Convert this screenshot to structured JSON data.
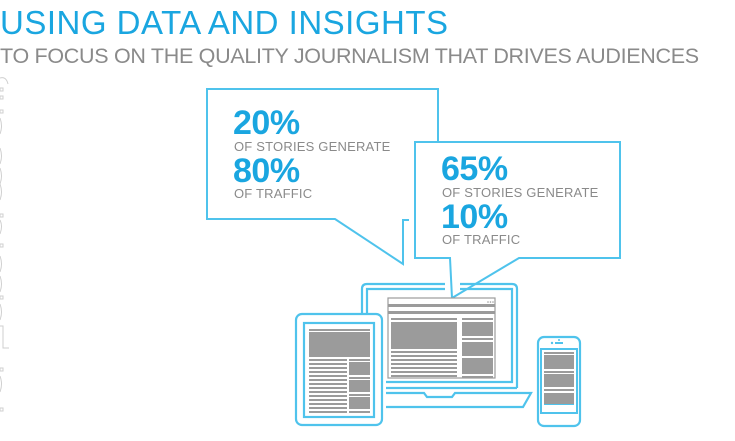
{
  "header": {
    "title": "USING DATA AND INSIGHTS",
    "subtitle": "TO FOCUS ON THE QUALITY JOURNALISM THAT DRIVES AUDIENCES"
  },
  "bubbles": [
    {
      "stat1": "20%",
      "text1": "OF STORIES GENERATE",
      "stat2": "80%",
      "text2": "OF TRAFFIC"
    },
    {
      "stat1": "65%",
      "text1": "OF STORIES GENERATE",
      "stat2": "10%",
      "text2": "OF TRAFFIC"
    }
  ],
  "devices": [
    "laptop-icon",
    "tablet-icon",
    "phone-icon"
  ],
  "colors": {
    "accent": "#1aa6e0",
    "outline": "#4fc3ec",
    "text_gray": "#8a8a8a",
    "content_gray": "#9b9b9b"
  }
}
